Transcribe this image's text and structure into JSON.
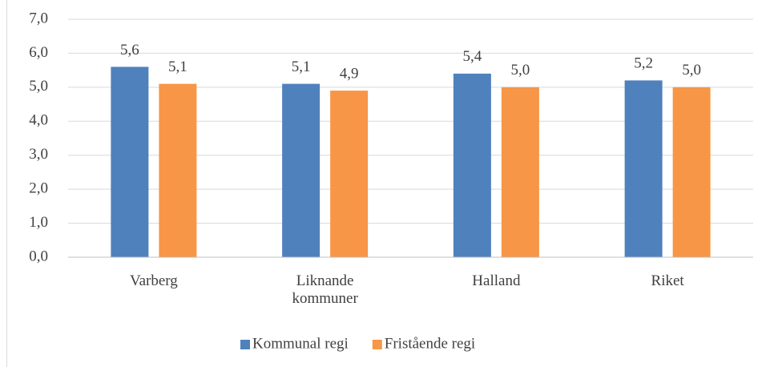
{
  "chart_data": {
    "type": "bar",
    "categories": [
      "Varberg",
      "Liknande kommuner",
      "Halland",
      "Riket"
    ],
    "series": [
      {
        "name": "Kommunal regi",
        "color": "#4f81bd",
        "values": [
          5.6,
          5.1,
          5.4,
          5.2
        ],
        "value_labels": [
          "5,6",
          "5,1",
          "5,4",
          "5,2"
        ]
      },
      {
        "name": "Fristående regi",
        "color": "#f79646",
        "values": [
          5.1,
          4.9,
          5.0,
          5.0
        ],
        "value_labels": [
          "5,1",
          "4,9",
          "5,0",
          "5,0"
        ]
      }
    ],
    "ylim": [
      0,
      7
    ],
    "yticks": [
      {
        "value": 0,
        "label": "0,0"
      },
      {
        "value": 1,
        "label": "1,0"
      },
      {
        "value": 2,
        "label": "2,0"
      },
      {
        "value": 3,
        "label": "3,0"
      },
      {
        "value": 4,
        "label": "4,0"
      },
      {
        "value": 5,
        "label": "5,0"
      },
      {
        "value": 6,
        "label": "6,0"
      },
      {
        "value": 7,
        "label": "7,0"
      }
    ],
    "grid": true,
    "legend": "bottom"
  }
}
